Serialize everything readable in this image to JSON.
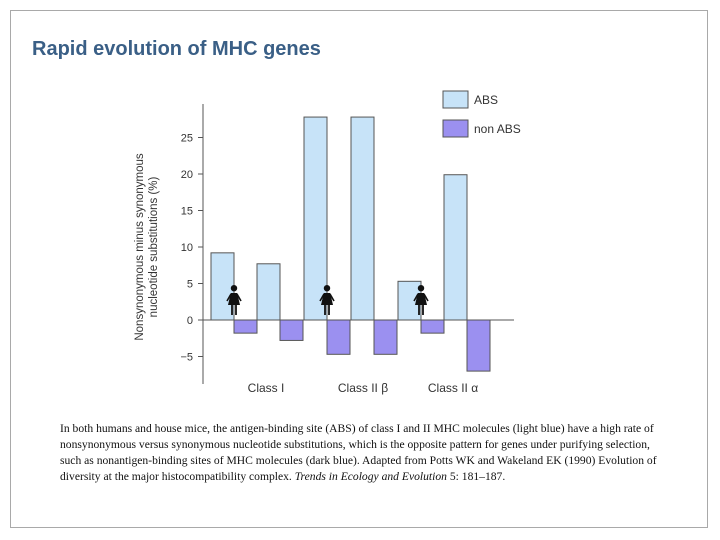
{
  "slide": {
    "title": "Rapid evolution of MHC genes"
  },
  "chart_data": {
    "type": "bar",
    "title": "",
    "ylabel_line1": "Nonsynonymous minus synonymous",
    "ylabel_line2": "nucleotide substitutions (%)",
    "xlabel": "",
    "ylim": [
      -7,
      28
    ],
    "yticks": [
      -5,
      0,
      5,
      10,
      15,
      20,
      25
    ],
    "ytick_labels": [
      "−5",
      "0",
      "5",
      "10",
      "15",
      "20",
      "25"
    ],
    "groups": [
      {
        "label": "Class I",
        "pairs": [
          {
            "ABS": 9.2,
            "non ABS": -1.8
          },
          {
            "ABS": 7.7,
            "non ABS": -2.8
          }
        ]
      },
      {
        "label": "Class II β",
        "pairs": [
          {
            "ABS": 27.8,
            "non ABS": -4.7
          },
          {
            "ABS": 27.8,
            "non ABS": -4.7
          }
        ]
      },
      {
        "label": "Class II α",
        "pairs": [
          {
            "ABS": 5.3,
            "non ABS": -1.8
          },
          {
            "ABS": 19.9,
            "non ABS": -7.0
          }
        ]
      }
    ],
    "series": [
      {
        "name": "ABS",
        "values": [
          9.2,
          7.7,
          27.8,
          27.8,
          5.3,
          19.9
        ]
      },
      {
        "name": "non ABS",
        "values": [
          -1.8,
          -2.8,
          -4.7,
          -4.7,
          -1.8,
          -7.0
        ]
      }
    ],
    "legend": [
      {
        "label": "ABS",
        "color": "#c7e3f8"
      },
      {
        "label": "non ABS",
        "color": "#9b90f0"
      }
    ],
    "human_icon_after_pairs": [
      0,
      2,
      4
    ],
    "legend_position": "top-right"
  },
  "caption": {
    "text": "In both humans and house mice, the antigen-binding site (ABS) of class I and II MHC molecules (light blue) have a high rate of nonsynonymous versus synonymous nucleotide substitutions, which is the opposite pattern for genes under purifying selection, such as nonantigen-binding sites of MHC molecules (dark blue). Adapted from Potts WK and Wakeland EK (1990) Evolution of diversity at the major histocompatibility complex. ",
    "journal": "Trends in Ecology and Evolution",
    "citation_tail": " 5: 181–187."
  }
}
